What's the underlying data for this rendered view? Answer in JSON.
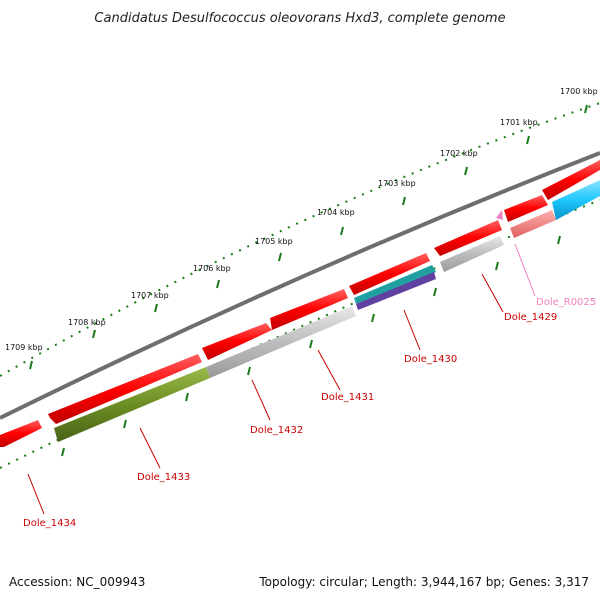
{
  "title": "Candidatus Desulfococcus oleovorans Hxd3, complete genome",
  "colors": {
    "gene_red": "#ff0000",
    "gene_red_label": "#cc0000",
    "rna_pink": "#f080c0",
    "backbone": "#808080",
    "ticks": "#1a7a1a",
    "olive": "#6b8e23",
    "cyan": "#1ec8ff",
    "teal": "#20a0a0",
    "purple": "#6040a0",
    "light_red": "#f08080",
    "gray": "#bdbdbd"
  },
  "scale_labels": [
    "1700 kbp",
    "1701 kbp",
    "1702 kbp",
    "1703 kbp",
    "1704 kbp",
    "1705 kbp",
    "1706 kbp",
    "1707 kbp",
    "1708 kbp",
    "1709 kbp"
  ],
  "gene_labels": [
    "Dole_R0025",
    "Dole_1429",
    "Dole_1430",
    "Dole_1431",
    "Dole_1432",
    "Dole_1433",
    "Dole_1434"
  ],
  "footer": {
    "accession": "Accession: NC_009943",
    "topology": "Topology: circular; Length: 3,944,167 bp; Genes: 3,317"
  }
}
